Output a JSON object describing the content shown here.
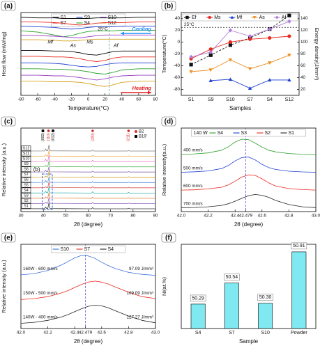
{
  "chart_data": [
    {
      "type": "line",
      "panel": "(a)",
      "xlabel": "Temperature(°C)",
      "ylabel": "Heat flow (mW/mg)",
      "x": [
        -80,
        -60,
        -40,
        -30,
        -20,
        -10,
        0,
        10,
        20,
        30,
        40,
        60,
        80
      ],
      "xlim": [
        -80,
        80
      ],
      "xticks": [
        -80,
        -60,
        -40,
        -20,
        0,
        20,
        40,
        60,
        80
      ],
      "ylim": [
        0,
        14
      ],
      "legend": "top",
      "series": [
        {
          "name": "S1",
          "color": "#000000",
          "values": [
            13.2,
            13.1,
            13.1,
            13.0,
            13.0,
            13.0,
            13.0,
            13.1,
            13.1,
            13.1,
            13.1,
            13.2,
            13.2
          ],
          "heating_values": [
            7.6,
            7.6,
            7.5,
            7.5,
            7.4,
            7.2,
            6.9,
            6.8,
            7.1,
            7.4,
            7.5,
            7.5,
            7.5
          ]
        },
        {
          "name": "S7",
          "color": "#e8281e",
          "values": [
            12.4,
            12.4,
            12.3,
            12.2,
            12.0,
            11.9,
            12.0,
            12.2,
            12.3,
            12.3,
            12.3,
            12.4,
            12.4
          ],
          "heating_values": [
            6.6,
            6.6,
            6.5,
            6.5,
            6.4,
            6.2,
            5.9,
            5.7,
            5.9,
            6.3,
            6.5,
            6.5,
            6.5
          ]
        },
        {
          "name": "S9",
          "color": "#1f3fd0",
          "values": [
            11.7,
            11.6,
            11.5,
            11.3,
            11.2,
            11.3,
            11.5,
            11.6,
            11.6,
            11.6,
            11.7,
            11.7,
            11.7
          ],
          "heating_values": [
            5.5,
            5.5,
            5.4,
            5.3,
            5.1,
            4.9,
            4.8,
            4.9,
            5.2,
            5.4,
            5.5,
            5.5,
            5.5
          ]
        },
        {
          "name": "S4",
          "color": "#2aa02a",
          "values": [
            10.9,
            10.7,
            10.2,
            9.9,
            10.1,
            10.5,
            10.8,
            10.9,
            10.9,
            10.9,
            11.0,
            11.0,
            11.0
          ],
          "heating_values": [
            4.5,
            4.5,
            4.4,
            4.4,
            4.3,
            4.2,
            4.0,
            3.7,
            3.6,
            3.9,
            4.3,
            4.5,
            4.5
          ]
        },
        {
          "name": "S10",
          "color": "#9b3fc0",
          "values": [
            10.2,
            10.1,
            10.0,
            9.9,
            9.8,
            9.7,
            9.9,
            10.1,
            10.2,
            10.2,
            10.2,
            10.2,
            10.2
          ],
          "heating_values": [
            3.4,
            3.4,
            3.3,
            3.3,
            3.2,
            3.0,
            2.8,
            2.6,
            2.8,
            3.1,
            3.3,
            3.4,
            3.4
          ]
        },
        {
          "name": "S12",
          "color": "#d4a017",
          "values": [
            9.4,
            9.4,
            9.3,
            9.2,
            9.2,
            9.3,
            9.4,
            9.5,
            9.5,
            9.5,
            9.5,
            9.5,
            9.5
          ],
          "heating_values": [
            2.4,
            2.4,
            2.3,
            2.3,
            2.3,
            2.2,
            2.0,
            1.7,
            1.5,
            1.8,
            2.2,
            2.4,
            2.4
          ]
        }
      ],
      "ref_line": {
        "x": 25,
        "label": "25°C",
        "color": "#5f9ea0"
      },
      "arrows": [
        {
          "text": "Cooling",
          "color": "#1e90ff",
          "direction": "left"
        },
        {
          "text": "Heating",
          "color": "#e02020",
          "direction": "right"
        }
      ],
      "phase_labels": [
        {
          "text": "Mf",
          "x": -45
        },
        {
          "text": "As",
          "x": -18
        },
        {
          "text": "Ms",
          "x": 2
        },
        {
          "text": "Af",
          "x": 33
        }
      ]
    },
    {
      "type": "line",
      "panel": "(b)",
      "xlabel": "Samples",
      "ylabel": "Temperature(°C)",
      "y2label": "Energy density(J/mm³)",
      "categories": [
        "S1",
        "S9",
        "S10",
        "S7",
        "S4",
        "S12"
      ],
      "ylim": [
        -90,
        50
      ],
      "yticks": [
        -80,
        -60,
        -40,
        -20,
        0,
        20,
        40
      ],
      "y2lim": [
        10,
        150
      ],
      "y2ticks": [
        20,
        40,
        60,
        80,
        100,
        120,
        140
      ],
      "markers": true,
      "legend": "top",
      "series": [
        {
          "name": "Ef",
          "color": "#111111",
          "marker": "square",
          "style": "dashed",
          "axis": "y2",
          "values": [
            62,
            78,
            95,
            107,
            122,
            145
          ]
        },
        {
          "name": "Ms",
          "color": "#e8281e",
          "marker": "circle",
          "values": [
            -28,
            -12,
            0,
            5,
            7,
            10
          ]
        },
        {
          "name": "Mf",
          "color": "#1f3fd0",
          "marker": "triangle",
          "values": [
            null,
            -65,
            -63,
            -78,
            -64,
            -64
          ]
        },
        {
          "name": "As",
          "color": "#f08c1e",
          "marker": "triangle-down",
          "values": [
            -50,
            -47,
            -30,
            -45,
            -35,
            -22
          ]
        },
        {
          "name": "Af",
          "color": "#b07ad8",
          "marker": "diamond",
          "values": [
            -25,
            -17,
            20,
            10,
            22,
            35
          ]
        }
      ],
      "ref_line": {
        "y": 25,
        "label": "25°C"
      }
    },
    {
      "type": "line",
      "panel": "(c)",
      "xlabel": "2θ (degree)",
      "ylabel": "Relative intensity (a.u.)",
      "x": [
        30,
        40.5,
        41,
        41.5,
        42,
        42.5,
        43,
        61.5,
        62,
        62.5,
        77.5,
        78,
        78.5,
        90
      ],
      "xlim": [
        30,
        90
      ],
      "xticks": [
        30,
        40,
        50,
        60,
        70,
        80,
        90
      ],
      "offset_traces": true,
      "trace_labels": true,
      "series": [
        {
          "name": "S12",
          "color": "#7f7f7f",
          "values": [
            0,
            0.05,
            0.9,
            0.1,
            0.2,
            2.6,
            0.1,
            0,
            0.5,
            0,
            0,
            0.2,
            0,
            0
          ]
        },
        {
          "name": "S11",
          "color": "#f0ad4e",
          "values": [
            0,
            0.05,
            0.7,
            0.1,
            0.2,
            2.4,
            0.1,
            0,
            0.45,
            0,
            0,
            0.2,
            0,
            0
          ]
        },
        {
          "name": "S10",
          "color": "#e377c2",
          "values": [
            0,
            0.05,
            1.0,
            0.1,
            0.25,
            2.7,
            0.1,
            0,
            0.55,
            0,
            0,
            0.25,
            0,
            0
          ]
        },
        {
          "name": "S9",
          "color": "#5cb85c",
          "values": [
            0,
            0.05,
            0.6,
            0.1,
            0.2,
            2.5,
            0.1,
            0,
            0.5,
            0,
            0,
            0.2,
            0,
            0
          ]
        },
        {
          "name": "S8",
          "color": "#8c6bb1",
          "values": [
            0,
            0.05,
            0.8,
            0.1,
            0.2,
            2.3,
            0.1,
            0,
            0.4,
            0,
            0,
            0.2,
            0,
            0
          ]
        },
        {
          "name": "S7",
          "color": "#c9a227",
          "values": [
            0,
            0.05,
            0.5,
            0.1,
            0.2,
            2.6,
            0.1,
            0,
            0.5,
            0,
            0,
            0.25,
            0,
            0
          ]
        },
        {
          "name": "S6",
          "color": "#4a90d9",
          "values": [
            0,
            0.05,
            0.9,
            0.1,
            0.2,
            2.4,
            0.1,
            0,
            0.45,
            0,
            0,
            0.2,
            0,
            0
          ]
        },
        {
          "name": "S5",
          "color": "#d9534f",
          "values": [
            0,
            0.05,
            0.4,
            0.1,
            0.2,
            2.5,
            0.1,
            0,
            0.5,
            0,
            0,
            0.2,
            0,
            0
          ]
        },
        {
          "name": "S4",
          "color": "#2bb0a8",
          "values": [
            0,
            0.05,
            0.7,
            0.1,
            0.2,
            2.7,
            0.1,
            0,
            0.55,
            0,
            0,
            0.25,
            0,
            0
          ]
        },
        {
          "name": "S3",
          "color": "#e07b39",
          "values": [
            0,
            0.05,
            0.5,
            0.1,
            0.2,
            2.4,
            0.1,
            0,
            0.45,
            0,
            0,
            0.2,
            0,
            0
          ]
        },
        {
          "name": "S2",
          "color": "#9467bd",
          "values": [
            0,
            0.05,
            0.6,
            0.1,
            0.2,
            2.5,
            0.1,
            0,
            0.5,
            0,
            0,
            0.2,
            0,
            0
          ]
        },
        {
          "name": "S1",
          "color": "#333333",
          "values": [
            0,
            0.05,
            0.8,
            0.1,
            0.2,
            2.6,
            0.1,
            0,
            0.5,
            0,
            0,
            0.25,
            0,
            0
          ]
        }
      ],
      "legend_markers": [
        {
          "name": "B2",
          "color": "#d62728",
          "marker": "circle"
        },
        {
          "name": "B19'",
          "color": "#000000",
          "marker": "square"
        }
      ],
      "peak_labels": [
        {
          "text": "(002)",
          "x": 39.8,
          "color": "#000000",
          "marker": "square"
        },
        {
          "text": "(110)",
          "x": 42.3,
          "color": "#d62728",
          "marker": "circle"
        },
        {
          "text": "(012)",
          "x": 44.3,
          "color": "#000000",
          "marker": "square"
        },
        {
          "text": "(200)",
          "x": 62,
          "color": "#d62728",
          "marker": "circle"
        },
        {
          "text": "(211)",
          "x": 78,
          "color": "#d62728",
          "marker": "circle"
        }
      ],
      "inset": {
        "label": "(b)",
        "x": [
          39.5,
          44
        ]
      }
    },
    {
      "type": "line",
      "panel": "(d)",
      "xlabel": "2θ (degree)",
      "ylabel": "Relative intensity(a.u.)",
      "x": [
        42.0,
        42.1,
        42.2,
        42.3,
        42.35,
        42.4,
        42.45,
        42.5,
        42.55,
        42.6,
        42.65,
        42.7,
        42.8,
        42.9,
        43.0
      ],
      "xlim": [
        42,
        43
      ],
      "xticks": [
        {
          "value": 42,
          "label": "42.0"
        },
        42.2,
        42.4,
        42.479,
        42.6,
        42.8,
        {
          "value": 43,
          "label": "43.0"
        }
      ],
      "offset_traces": true,
      "legend": "top",
      "legend_title": "140 W",
      "ref_line": {
        "x": 42.479,
        "color": "#7b3fe4"
      },
      "series": [
        {
          "name": "S4",
          "color": "#2aa02a",
          "annotation": "400 mm/s",
          "values": [
            0.05,
            0.08,
            0.14,
            0.3,
            0.5,
            0.78,
            0.95,
            0.92,
            0.72,
            0.48,
            0.3,
            0.2,
            0.1,
            0.06,
            0.04
          ]
        },
        {
          "name": "S3",
          "color": "#1f3fd0",
          "annotation": "500 mm/s",
          "values": [
            0.05,
            0.08,
            0.13,
            0.27,
            0.45,
            0.72,
            0.92,
            0.95,
            0.78,
            0.52,
            0.33,
            0.22,
            0.11,
            0.07,
            0.05
          ]
        },
        {
          "name": "S2",
          "color": "#e8281e",
          "annotation": "600 mm/s",
          "values": [
            0.05,
            0.07,
            0.12,
            0.22,
            0.36,
            0.58,
            0.82,
            0.95,
            0.92,
            0.72,
            0.48,
            0.3,
            0.14,
            0.08,
            0.05
          ]
        },
        {
          "name": "S1",
          "color": "#222222",
          "annotation": "700 mm/s",
          "values": [
            0.06,
            0.08,
            0.12,
            0.2,
            0.3,
            0.45,
            0.62,
            0.78,
            0.85,
            0.8,
            0.68,
            0.5,
            0.25,
            0.12,
            0.07
          ]
        }
      ]
    },
    {
      "type": "line",
      "panel": "(e)",
      "xlabel": "2θ (degree)",
      "ylabel": "Relative intensity (a.u.)",
      "x": [
        42.0,
        42.1,
        42.2,
        42.3,
        42.35,
        42.4,
        42.45,
        42.5,
        42.55,
        42.6,
        42.65,
        42.7,
        42.8,
        42.9,
        43.0
      ],
      "xlim": [
        42,
        43
      ],
      "xticks": [
        {
          "value": 42,
          "label": "42.0"
        },
        42.2,
        42.4,
        42.479,
        42.6,
        42.8,
        {
          "value": 43,
          "label": "43.0"
        }
      ],
      "offset_traces": true,
      "legend": "top",
      "ref_line": {
        "x": 42.479,
        "color": "#5b5bd6"
      },
      "series": [
        {
          "name": "S10",
          "color": "#3a6fd8",
          "annotation": "160W - 600 mm/s",
          "energy_label": "97.09 J/mm³",
          "values": [
            0.1,
            0.15,
            0.28,
            0.5,
            0.65,
            0.8,
            0.9,
            0.88,
            0.78,
            0.62,
            0.48,
            0.36,
            0.2,
            0.12,
            0.08
          ]
        },
        {
          "name": "S7",
          "color": "#e8281e",
          "annotation": "150W - 500 mm/s",
          "energy_label": "109.09 J/mm³",
          "values": [
            0.08,
            0.12,
            0.2,
            0.35,
            0.45,
            0.58,
            0.7,
            0.8,
            0.84,
            0.8,
            0.72,
            0.6,
            0.38,
            0.2,
            0.12
          ]
        },
        {
          "name": "S4",
          "color": "#222222",
          "annotation": "140W - 400 mm/s",
          "energy_label": "127.27 J/mm³",
          "values": [
            0.1,
            0.14,
            0.22,
            0.36,
            0.46,
            0.58,
            0.7,
            0.8,
            0.85,
            0.82,
            0.74,
            0.62,
            0.4,
            0.22,
            0.12
          ]
        }
      ]
    },
    {
      "type": "bar",
      "panel": "(f)",
      "xlabel": "Sample",
      "ylabel": "Ni(at.%)",
      "categories": [
        "S4",
        "S7",
        "S10",
        "Powder"
      ],
      "values": [
        50.29,
        50.54,
        50.3,
        50.91
      ],
      "value_labels": [
        "50.29",
        "50.54",
        "50.30",
        "50.91"
      ],
      "color": "#7fe8f0",
      "ylim": [
        50,
        51
      ]
    }
  ]
}
